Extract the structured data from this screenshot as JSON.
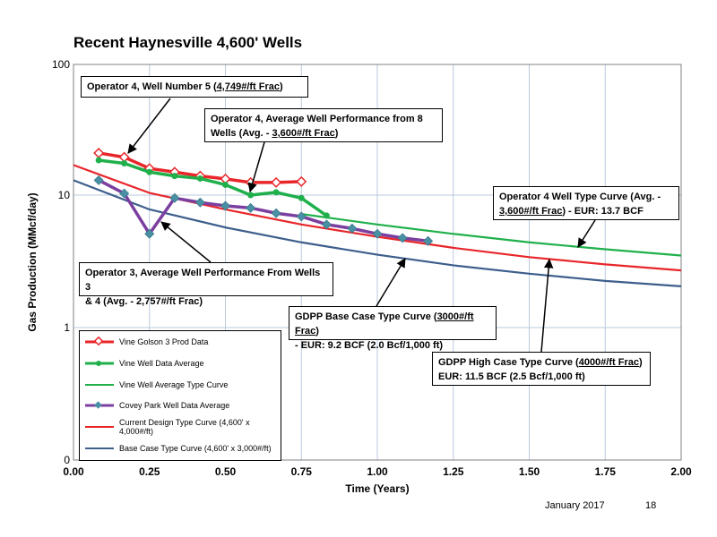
{
  "page": {
    "title": "Recent Haynesville 4,600' Wells",
    "footer_date": "January 2017",
    "footer_page": "18"
  },
  "chart_data": {
    "type": "line",
    "title": "Recent Haynesville 4,600' Wells",
    "xlabel": "Time (Years)",
    "ylabel": "Gas Production (MMcf/day)",
    "xlim": [
      0,
      2
    ],
    "ylim": [
      0.1,
      100
    ],
    "yscale": "log",
    "grid": true,
    "legend_position": "bottom-left",
    "x_ticks": [
      "0.00",
      "0.25",
      "0.50",
      "0.75",
      "1.00",
      "1.25",
      "1.50",
      "1.75",
      "2.00"
    ],
    "y_ticks": [
      {
        "value": 100,
        "label": "100"
      },
      {
        "value": 10,
        "label": "10"
      },
      {
        "value": 1,
        "label": "1"
      },
      {
        "value": 0.1,
        "label": "0"
      }
    ],
    "series": [
      {
        "name": "Vine Golson 3 Prod Data",
        "color": "#e8262a",
        "style": "line-diamond-open",
        "x": [
          0.083,
          0.167,
          0.25,
          0.333,
          0.417,
          0.5,
          0.583,
          0.667,
          0.75
        ],
        "y": [
          21,
          19.5,
          16,
          15,
          14,
          13.3,
          12.5,
          12.5,
          12.7
        ]
      },
      {
        "name": "Vine Well Data Average",
        "color": "#20b04b",
        "style": "line-circle",
        "x": [
          0.083,
          0.167,
          0.25,
          0.333,
          0.417,
          0.5,
          0.583,
          0.667,
          0.75,
          0.833
        ],
        "y": [
          18.5,
          17.5,
          15,
          14,
          13.4,
          12,
          10,
          10.5,
          9.5,
          7
        ]
      },
      {
        "name": "Vine Well Average Type Curve",
        "color": "#20b04b",
        "style": "line",
        "x": [
          0.75,
          1.0,
          1.25,
          1.5,
          1.75,
          2.0
        ],
        "y": [
          7.2,
          6.0,
          5.1,
          4.4,
          3.9,
          3.5
        ]
      },
      {
        "name": "Covey Park Well Data Average",
        "color": "#7b3fa0",
        "style": "line-diamond-teal",
        "x": [
          0.083,
          0.167,
          0.25,
          0.333,
          0.417,
          0.5,
          0.583,
          0.667,
          0.75,
          0.833,
          0.917,
          1.0,
          1.083,
          1.167
        ],
        "y": [
          13,
          10.3,
          5.1,
          9.5,
          8.8,
          8.3,
          8.0,
          7.3,
          6.9,
          6.0,
          5.6,
          5.1,
          4.75,
          4.5
        ]
      },
      {
        "name": "Current Design Type Curve (4,600' x 4,000#/ft)",
        "color": "#e8262a",
        "style": "line",
        "x": [
          0,
          0.25,
          0.5,
          0.75,
          1.0,
          1.25,
          1.5,
          1.75,
          2.0
        ],
        "y": [
          17,
          10.4,
          7.8,
          6.0,
          4.85,
          4.0,
          3.4,
          3.0,
          2.7
        ]
      },
      {
        "name": "Base Case Type Curve (4,600' x 3,000#/ft)",
        "color": "#3d5e8c",
        "style": "line",
        "x": [
          0,
          0.25,
          0.5,
          0.75,
          1.0,
          1.25,
          1.5,
          1.75,
          2.0
        ],
        "y": [
          13,
          7.8,
          5.7,
          4.4,
          3.55,
          2.95,
          2.55,
          2.25,
          2.05
        ]
      }
    ],
    "annotations": [
      {
        "id": "op4-well5",
        "parts": [
          "Operator 4, Well Number  5 (",
          "4,749#/ft Frac",
          ")"
        ]
      },
      {
        "id": "op4-avg",
        "line1": "Operator 4, Average Well Performance from 8",
        "line2_parts": [
          "Wells (Avg. - ",
          "3,600#/ft Frac",
          ")"
        ]
      },
      {
        "id": "op4-type",
        "line1": "Operator 4 Well Type Curve (Avg. -",
        "line2_parts": [
          "3,600#/ft Frac",
          ") - EUR: 13.7 BCF"
        ]
      },
      {
        "id": "op3-avg",
        "line1": "Operator 3, Average Well Performance From Wells 3",
        "line2": "& 4 (Avg. - 2,757#/ft Frac)"
      },
      {
        "id": "gdpp-base",
        "line1_parts": [
          "GDPP Base Case Type Curve (",
          "3000#/ft Frac",
          ")"
        ],
        "line2": " - EUR:  9.2 BCF (2.0 Bcf/1,000 ft)"
      },
      {
        "id": "gdpp-high",
        "line1_parts": [
          "GDPP High Case Type Curve (",
          "4000#/ft Frac",
          ")"
        ],
        "line2": "EUR: 11.5 BCF (2.5 Bcf/1,000 ft)"
      }
    ]
  }
}
